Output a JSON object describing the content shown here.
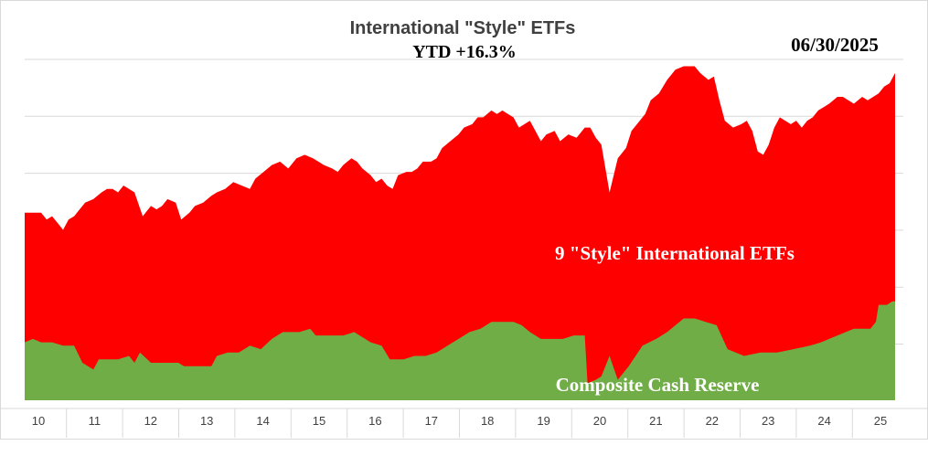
{
  "chart_data": {
    "type": "area",
    "stacked": true,
    "title": "International \"Style\" ETFs",
    "subtitle": "YTD +16.3%",
    "date": "06/30/2025",
    "x_tick_labels": [
      "10",
      "11",
      "12",
      "13",
      "14",
      "15",
      "16",
      "17",
      "18",
      "19",
      "20",
      "21",
      "22",
      "23",
      "24",
      "25"
    ],
    "x_range": [
      2009.5,
      2025.5
    ],
    "grid": true,
    "axis_labels_on_chart": true,
    "series": [
      {
        "name": "Composite Cash Reserve",
        "color": "#70ad47",
        "points": [
          [
            2009.5,
            17
          ],
          [
            2009.65,
            18
          ],
          [
            2009.8,
            17
          ],
          [
            2010.0,
            17
          ],
          [
            2010.2,
            16
          ],
          [
            2010.4,
            16
          ],
          [
            2010.55,
            11
          ],
          [
            2010.75,
            9
          ],
          [
            2010.85,
            12
          ],
          [
            2011.2,
            12
          ],
          [
            2011.4,
            13
          ],
          [
            2011.5,
            11
          ],
          [
            2011.6,
            14
          ],
          [
            2011.8,
            11
          ],
          [
            2012.3,
            11
          ],
          [
            2012.4,
            10
          ],
          [
            2012.9,
            10
          ],
          [
            2013.0,
            13
          ],
          [
            2013.2,
            14
          ],
          [
            2013.4,
            14
          ],
          [
            2013.6,
            16
          ],
          [
            2013.8,
            15
          ],
          [
            2014.0,
            18
          ],
          [
            2014.2,
            20
          ],
          [
            2014.5,
            20
          ],
          [
            2014.7,
            21
          ],
          [
            2014.8,
            19
          ],
          [
            2015.3,
            19
          ],
          [
            2015.5,
            20
          ],
          [
            2015.6,
            19
          ],
          [
            2015.8,
            17
          ],
          [
            2016.0,
            16
          ],
          [
            2016.15,
            12
          ],
          [
            2016.4,
            12
          ],
          [
            2016.6,
            13
          ],
          [
            2016.8,
            13
          ],
          [
            2017.0,
            14
          ],
          [
            2017.2,
            16
          ],
          [
            2017.4,
            18
          ],
          [
            2017.6,
            20
          ],
          [
            2017.8,
            21
          ],
          [
            2018.0,
            23
          ],
          [
            2018.2,
            23
          ],
          [
            2018.4,
            23
          ],
          [
            2018.55,
            22
          ],
          [
            2018.7,
            20
          ],
          [
            2018.9,
            18
          ],
          [
            2019.3,
            18
          ],
          [
            2019.5,
            19
          ],
          [
            2019.7,
            19
          ],
          [
            2019.75,
            5
          ],
          [
            2019.9,
            6
          ],
          [
            2020.0,
            7
          ],
          [
            2020.15,
            13
          ],
          [
            2020.3,
            6
          ],
          [
            2020.5,
            10
          ],
          [
            2020.75,
            16
          ],
          [
            2021.0,
            18
          ],
          [
            2021.2,
            20
          ],
          [
            2021.5,
            24
          ],
          [
            2021.7,
            24
          ],
          [
            2021.9,
            23
          ],
          [
            2022.1,
            22
          ],
          [
            2022.3,
            15
          ],
          [
            2022.6,
            13
          ],
          [
            2022.9,
            14
          ],
          [
            2023.2,
            14
          ],
          [
            2023.5,
            15
          ],
          [
            2023.8,
            16
          ],
          [
            2024.0,
            17
          ],
          [
            2024.3,
            19
          ],
          [
            2024.6,
            21
          ],
          [
            2024.9,
            21
          ],
          [
            2025.0,
            23
          ],
          [
            2025.05,
            28
          ],
          [
            2025.2,
            28
          ],
          [
            2025.3,
            29
          ],
          [
            2025.35,
            29
          ]
        ]
      },
      {
        "name": "9 \"Style\" International ETFs",
        "color": "#ff0000",
        "points": [
          [
            2009.5,
            55
          ],
          [
            2009.6,
            55
          ],
          [
            2009.8,
            55
          ],
          [
            2009.9,
            53
          ],
          [
            2010.0,
            54
          ],
          [
            2010.1,
            52
          ],
          [
            2010.2,
            50
          ],
          [
            2010.3,
            53
          ],
          [
            2010.4,
            54
          ],
          [
            2010.5,
            56
          ],
          [
            2010.6,
            58
          ],
          [
            2010.75,
            59
          ],
          [
            2010.9,
            61
          ],
          [
            2011.0,
            62
          ],
          [
            2011.1,
            62
          ],
          [
            2011.2,
            61
          ],
          [
            2011.3,
            63
          ],
          [
            2011.4,
            62
          ],
          [
            2011.5,
            61
          ],
          [
            2011.65,
            54
          ],
          [
            2011.8,
            57
          ],
          [
            2011.9,
            56
          ],
          [
            2012.0,
            57
          ],
          [
            2012.1,
            59
          ],
          [
            2012.25,
            58
          ],
          [
            2012.35,
            53
          ],
          [
            2012.5,
            55
          ],
          [
            2012.6,
            57
          ],
          [
            2012.75,
            58
          ],
          [
            2012.9,
            60
          ],
          [
            2013.0,
            61
          ],
          [
            2013.15,
            62
          ],
          [
            2013.3,
            64
          ],
          [
            2013.45,
            63
          ],
          [
            2013.6,
            62
          ],
          [
            2013.7,
            65
          ],
          [
            2013.85,
            67
          ],
          [
            2014.0,
            69
          ],
          [
            2014.15,
            70
          ],
          [
            2014.3,
            68
          ],
          [
            2014.45,
            71
          ],
          [
            2014.6,
            72
          ],
          [
            2014.75,
            71
          ],
          [
            2014.85,
            70
          ],
          [
            2014.95,
            69
          ],
          [
            2015.1,
            68
          ],
          [
            2015.2,
            67
          ],
          [
            2015.3,
            69
          ],
          [
            2015.45,
            71
          ],
          [
            2015.55,
            70
          ],
          [
            2015.65,
            68
          ],
          [
            2015.8,
            66
          ],
          [
            2015.9,
            64
          ],
          [
            2016.0,
            65
          ],
          [
            2016.1,
            63
          ],
          [
            2016.2,
            62
          ],
          [
            2016.3,
            66
          ],
          [
            2016.45,
            67
          ],
          [
            2016.55,
            67
          ],
          [
            2016.65,
            68
          ],
          [
            2016.75,
            70
          ],
          [
            2016.9,
            70
          ],
          [
            2017.0,
            71
          ],
          [
            2017.1,
            74
          ],
          [
            2017.25,
            76
          ],
          [
            2017.4,
            78
          ],
          [
            2017.5,
            80
          ],
          [
            2017.65,
            81
          ],
          [
            2017.75,
            83
          ],
          [
            2017.85,
            83
          ],
          [
            2018.0,
            85
          ],
          [
            2018.1,
            84
          ],
          [
            2018.2,
            85
          ],
          [
            2018.3,
            84
          ],
          [
            2018.4,
            83
          ],
          [
            2018.5,
            80
          ],
          [
            2018.6,
            81
          ],
          [
            2018.7,
            82
          ],
          [
            2018.8,
            79
          ],
          [
            2018.9,
            76
          ],
          [
            2019.0,
            78
          ],
          [
            2019.15,
            79
          ],
          [
            2019.25,
            76
          ],
          [
            2019.4,
            78
          ],
          [
            2019.55,
            77
          ],
          [
            2019.7,
            80
          ],
          [
            2019.8,
            80
          ],
          [
            2019.9,
            77
          ],
          [
            2020.0,
            75
          ],
          [
            2020.15,
            61
          ],
          [
            2020.3,
            71
          ],
          [
            2020.45,
            74
          ],
          [
            2020.55,
            79
          ],
          [
            2020.65,
            81
          ],
          [
            2020.8,
            84
          ],
          [
            2020.9,
            88
          ],
          [
            2021.05,
            90
          ],
          [
            2021.2,
            94
          ],
          [
            2021.35,
            97
          ],
          [
            2021.5,
            98
          ],
          [
            2021.6,
            98
          ],
          [
            2021.7,
            98
          ],
          [
            2021.8,
            96
          ],
          [
            2021.95,
            94
          ],
          [
            2022.05,
            95
          ],
          [
            2022.15,
            88
          ],
          [
            2022.25,
            82
          ],
          [
            2022.4,
            80
          ],
          [
            2022.55,
            81
          ],
          [
            2022.65,
            82
          ],
          [
            2022.75,
            79
          ],
          [
            2022.85,
            73
          ],
          [
            2022.95,
            72
          ],
          [
            2023.05,
            75
          ],
          [
            2023.15,
            80
          ],
          [
            2023.25,
            83
          ],
          [
            2023.35,
            82
          ],
          [
            2023.45,
            81
          ],
          [
            2023.55,
            82
          ],
          [
            2023.65,
            80
          ],
          [
            2023.75,
            82
          ],
          [
            2023.85,
            83
          ],
          [
            2023.95,
            85
          ],
          [
            2024.05,
            86
          ],
          [
            2024.15,
            87
          ],
          [
            2024.3,
            89
          ],
          [
            2024.4,
            89
          ],
          [
            2024.5,
            88
          ],
          [
            2024.6,
            87
          ],
          [
            2024.75,
            89
          ],
          [
            2024.85,
            88
          ],
          [
            2024.95,
            89
          ],
          [
            2025.05,
            90
          ],
          [
            2025.15,
            92
          ],
          [
            2025.25,
            93
          ],
          [
            2025.35,
            96
          ]
        ]
      }
    ]
  }
}
